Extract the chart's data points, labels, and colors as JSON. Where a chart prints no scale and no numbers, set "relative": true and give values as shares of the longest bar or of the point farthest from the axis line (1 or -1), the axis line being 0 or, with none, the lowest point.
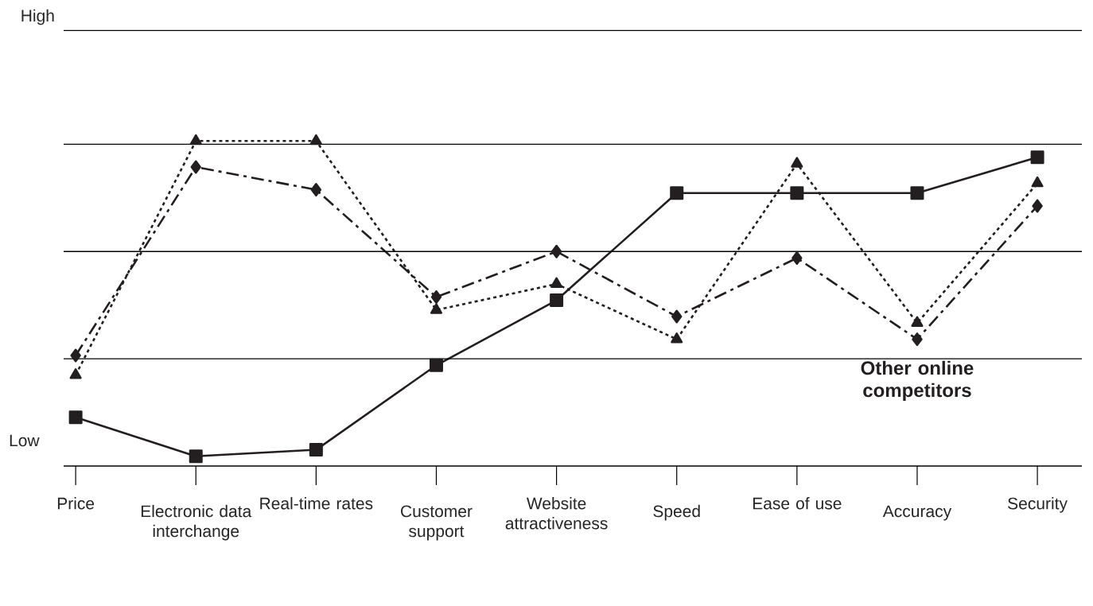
{
  "chart_data": {
    "type": "line",
    "relative": true,
    "categories": [
      "Price",
      "Electronic data interchange",
      "Real-time rates",
      "Customer support",
      "Website attractiveness",
      "Speed",
      "Ease of use",
      "Accuracy",
      "Security"
    ],
    "series": [
      {
        "color": "#231f20",
        "marker": "square",
        "line_style": "solid",
        "values": [
          0.15,
          0.03,
          0.05,
          0.31,
          0.51,
          0.84,
          0.84,
          0.84,
          0.95
        ]
      },
      {
        "color": "#231f20",
        "marker": "triangle",
        "line_style": "dotted",
        "values": [
          0.28,
          1,
          1,
          0.48,
          0.56,
          0.39,
          0.93,
          0.44,
          0.87
        ]
      },
      {
        "name": "Other online competitors",
        "color": "#231f20",
        "marker": "diamond",
        "line_style": "dashed",
        "values": [
          0.34,
          0.92,
          0.85,
          0.52,
          0.66,
          0.46,
          0.64,
          0.39,
          0.8
        ]
      }
    ],
    "ref_lines": [
      {
        "axis": "y",
        "value": 0.33
      },
      {
        "axis": "y",
        "value": 0.66
      },
      {
        "axis": "y",
        "value": 0.99
      },
      {
        "axis": "y",
        "value": 1.34,
        "label": "High"
      }
    ],
    "annotations": [
      "Low"
    ],
    "legend": false
  }
}
